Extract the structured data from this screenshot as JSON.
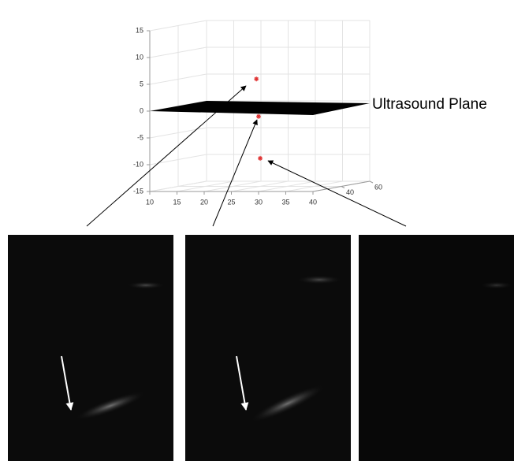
{
  "chart_data": {
    "type": "scatter3d",
    "annotation": "Ultrasound Plane",
    "xlim": [
      10,
      40
    ],
    "xticks": [
      10,
      15,
      20,
      25,
      30,
      35,
      40
    ],
    "ylim": [
      20,
      60
    ],
    "yticks": [
      40,
      60
    ],
    "zlim": [
      -15,
      15
    ],
    "zticks": [
      -15,
      -10,
      -5,
      0,
      5,
      10,
      15
    ],
    "grid": true,
    "series": [
      {
        "color": "#e03030",
        "x": [
          29.6,
          30,
          30.3
        ],
        "y": [
          20,
          20,
          20
        ],
        "z": [
          6,
          -1,
          -8.8
        ]
      }
    ]
  }
}
